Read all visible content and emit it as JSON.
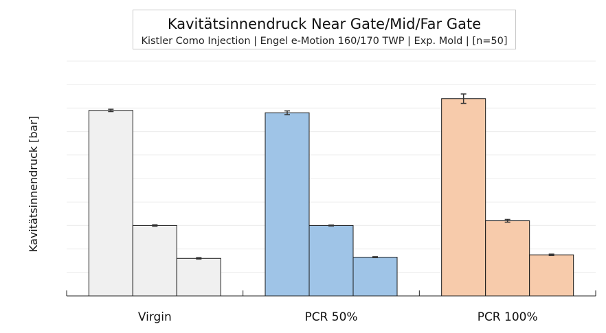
{
  "chart_data": {
    "type": "bar",
    "title": "Kavitätsinnendruck Near Gate/Mid/Far Gate",
    "subtitle": "Kistler Como Injection | Engel e-Motion 160/170 TWP | Exp. Mold | [n=50]",
    "ylabel": "Kavitätsinnendruck [bar]",
    "categories": [
      "Virgin",
      "PCR 50%",
      "PCR 100%"
    ],
    "ylim": [
      0,
      10
    ],
    "grid": true,
    "series": [
      {
        "values": [
          7.9,
          7.8,
          8.4
        ],
        "errors": [
          0.05,
          0.08,
          0.2
        ]
      },
      {
        "values": [
          3.0,
          3.0,
          3.2
        ],
        "errors": [
          0.03,
          0.02,
          0.06
        ]
      },
      {
        "values": [
          1.6,
          1.65,
          1.75
        ],
        "errors": [
          0.03,
          0.02,
          0.03
        ]
      }
    ],
    "group_colors": [
      "#f0f0f0",
      "#9fc4e7",
      "#f7cbab"
    ]
  }
}
